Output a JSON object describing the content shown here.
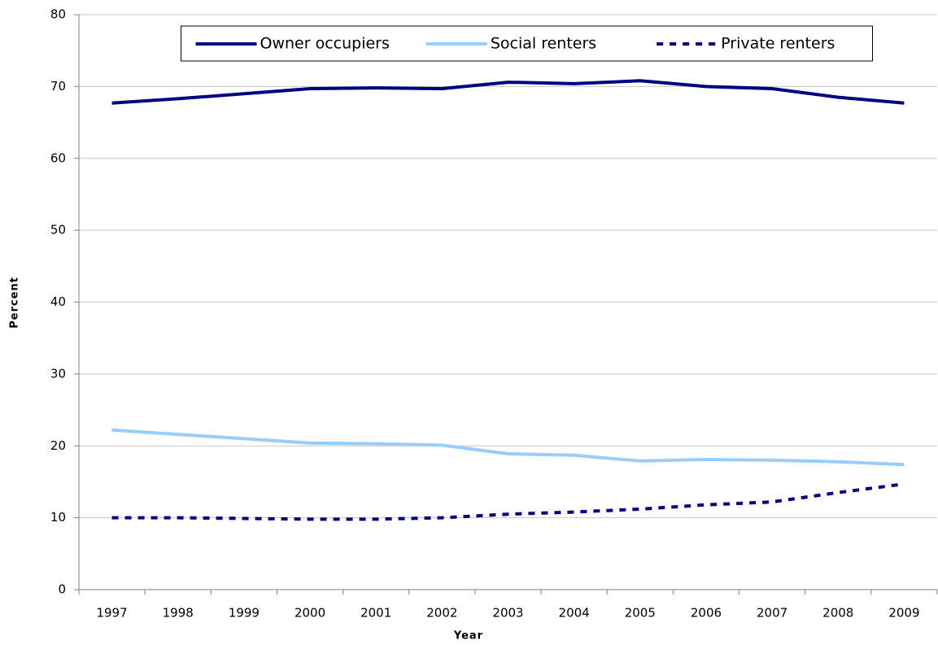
{
  "chart_data": {
    "type": "line",
    "x_label": "Year",
    "y_label": "Percent",
    "categories": [
      "1997",
      "1998",
      "1999",
      "2000",
      "2001",
      "2002",
      "2003",
      "2004",
      "2005",
      "2006",
      "2007",
      "2008",
      "2009"
    ],
    "series": [
      {
        "name": "Owner occupiers",
        "color": "#000080",
        "style": "solid",
        "values": [
          67.7,
          68.3,
          69.0,
          69.7,
          69.8,
          69.7,
          70.6,
          70.4,
          70.8,
          70.0,
          69.7,
          68.5,
          67.7
        ]
      },
      {
        "name": "Social renters",
        "color": "#99ccff",
        "style": "solid",
        "values": [
          22.2,
          21.6,
          21.0,
          20.4,
          20.3,
          20.1,
          18.9,
          18.7,
          17.9,
          18.1,
          18.0,
          17.8,
          17.4
        ]
      },
      {
        "name": "Private renters",
        "color": "#000080",
        "style": "dashed",
        "values": [
          10.0,
          10.0,
          9.9,
          9.8,
          9.8,
          10.0,
          10.5,
          10.8,
          11.2,
          11.8,
          12.2,
          13.5,
          14.7
        ]
      }
    ],
    "ylim": [
      0,
      80
    ],
    "yticks": [
      0,
      10,
      20,
      30,
      40,
      50,
      60,
      70,
      80
    ],
    "grid": true,
    "legend": "top"
  }
}
